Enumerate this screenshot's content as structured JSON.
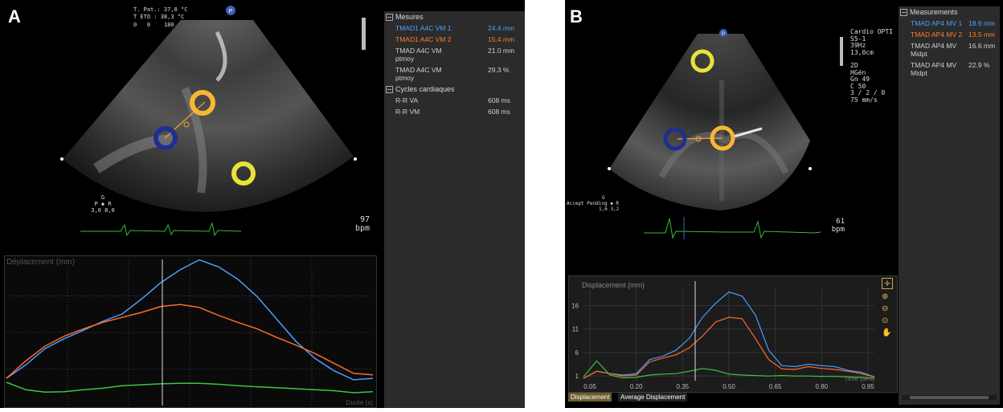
{
  "panelA": {
    "label": "A",
    "probe_info": [
      "T. Pat.: 37,0 °C",
      "T ETO : 38,3 °C"
    ],
    "angle_scale": [
      "0",
      "0",
      "180"
    ],
    "marker_p": "P",
    "orientation": {
      "top": "G",
      "left": "P",
      "right": "R",
      "values": "3,0  8,0"
    },
    "heart_rate": {
      "value": "97",
      "unit": "bpm"
    },
    "measurements": {
      "header": "Mesures",
      "rows": [
        {
          "name": "TMAD1 A4C VM 1",
          "value": "24.4 mm",
          "color": "#4aa3ff"
        },
        {
          "name": "TMAD1 A4C VM 2",
          "value": "15.4 mm",
          "color": "#ff7b2e"
        },
        {
          "name": "TMAD A4C VM ptmoy",
          "value": "21.0 mm",
          "color": "#cfcfcf"
        },
        {
          "name": "TMAD A4C VM ptmoy",
          "value": "29.3 %",
          "color": "#cfcfcf"
        }
      ],
      "cycles_header": "Cycles cardiaques",
      "cycles": [
        {
          "name": "R-R VA",
          "value": "608 ms"
        },
        {
          "name": "R-R VM",
          "value": "608 ms"
        }
      ]
    },
    "chart_label": "Déplacement (mm)",
    "chart_footer": "Durée (s)"
  },
  "panelB": {
    "label": "B",
    "marker_p": "P",
    "settings": [
      "Cardio OPTI",
      "S5-1",
      "39Hz",
      "13,0cm",
      "",
      "2D",
      "HGén",
      "Gn 49",
      "C 50",
      "3 / 2 / 0",
      "75 mm/s"
    ],
    "orientation": {
      "prefix": "Accept Pending",
      "top": "G",
      "right": "R",
      "values": "1,6  3,2"
    },
    "heart_rate": {
      "value": "61",
      "unit": "bpm"
    },
    "measurements": {
      "header": "Measurements",
      "rows": [
        {
          "name": "TMAD AP4 MV 1",
          "value": "18.9 mm",
          "color": "#4aa3ff"
        },
        {
          "name": "TMAD AP4 MV 2",
          "value": "13.5 mm",
          "color": "#ff7b2e"
        },
        {
          "name": "TMAD AP4 MV Midpt",
          "value": "16.6 mm",
          "color": "#cfcfcf"
        },
        {
          "name": "TMAD AP4 MV Midpt",
          "value": "22.9 %",
          "color": "#cfcfcf"
        }
      ]
    },
    "chart_label": "Displacement (mm)",
    "chart_footer": "Time (sec)",
    "tabs": [
      "Displacement",
      "Average Displacement"
    ]
  },
  "chart_data": [
    {
      "type": "line",
      "ylabel": "Déplacement (mm)",
      "xlabel": "Durée (s)",
      "series": [
        {
          "color": "#4c9cff",
          "values": [
            0.5,
            3.2,
            6.5,
            8.5,
            10.2,
            12.0,
            13.5,
            16.5,
            19.8,
            22.4,
            24.4,
            23.0,
            20.5,
            17.0,
            12.5,
            8.0,
            4.5,
            2.0,
            0.2,
            0.5
          ]
        },
        {
          "color": "#ff6a2a",
          "values": [
            0.5,
            4.0,
            7.0,
            9.0,
            10.5,
            11.8,
            12.8,
            13.8,
            15.0,
            15.4,
            14.8,
            13.2,
            11.8,
            10.5,
            8.8,
            7.2,
            5.5,
            3.5,
            1.5,
            1.2
          ]
        },
        {
          "color": "#3fc43f",
          "values": [
            -0.3,
            -1.8,
            -2.3,
            -2.2,
            -1.8,
            -1.5,
            -1.0,
            -0.8,
            -0.6,
            -0.5,
            -0.5,
            -0.7,
            -1.0,
            -1.2,
            -1.4,
            -1.6,
            -1.8,
            -2.0,
            -2.4,
            -2.2
          ]
        }
      ]
    },
    {
      "type": "line",
      "ylabel": "Displacement (mm)",
      "xlabel": "Time (sec)",
      "x_ticks": [
        "0.05",
        "0.20",
        "0.35",
        "0.50",
        "0.65",
        "0.80",
        "0.95"
      ],
      "y_ticks": [
        "1",
        "6",
        "11",
        "16"
      ],
      "series": [
        {
          "color": "#4c9cff",
          "values": [
            0.5,
            2.0,
            1.5,
            1.2,
            1.5,
            4.5,
            5.2,
            6.5,
            9.0,
            13.5,
            16.5,
            18.9,
            18.0,
            14.0,
            6.5,
            3.2,
            3.0,
            3.5,
            3.2,
            3.0,
            2.2,
            1.8,
            0.8
          ]
        },
        {
          "color": "#ff6a2a",
          "values": [
            0.5,
            2.0,
            1.5,
            1.0,
            1.2,
            4.0,
            4.8,
            5.5,
            7.0,
            9.5,
            12.5,
            13.5,
            13.2,
            9.0,
            4.5,
            2.5,
            2.4,
            3.0,
            2.6,
            2.4,
            2.0,
            1.5,
            0.8
          ]
        },
        {
          "color": "#3fc43f",
          "values": [
            0.8,
            4.2,
            1.2,
            0.6,
            0.7,
            1.2,
            1.4,
            1.5,
            2.0,
            2.6,
            2.2,
            1.4,
            1.2,
            1.1,
            1.0,
            1.1,
            1.0,
            1.0,
            0.9,
            0.9,
            0.8,
            0.7,
            0.5
          ]
        }
      ]
    }
  ]
}
